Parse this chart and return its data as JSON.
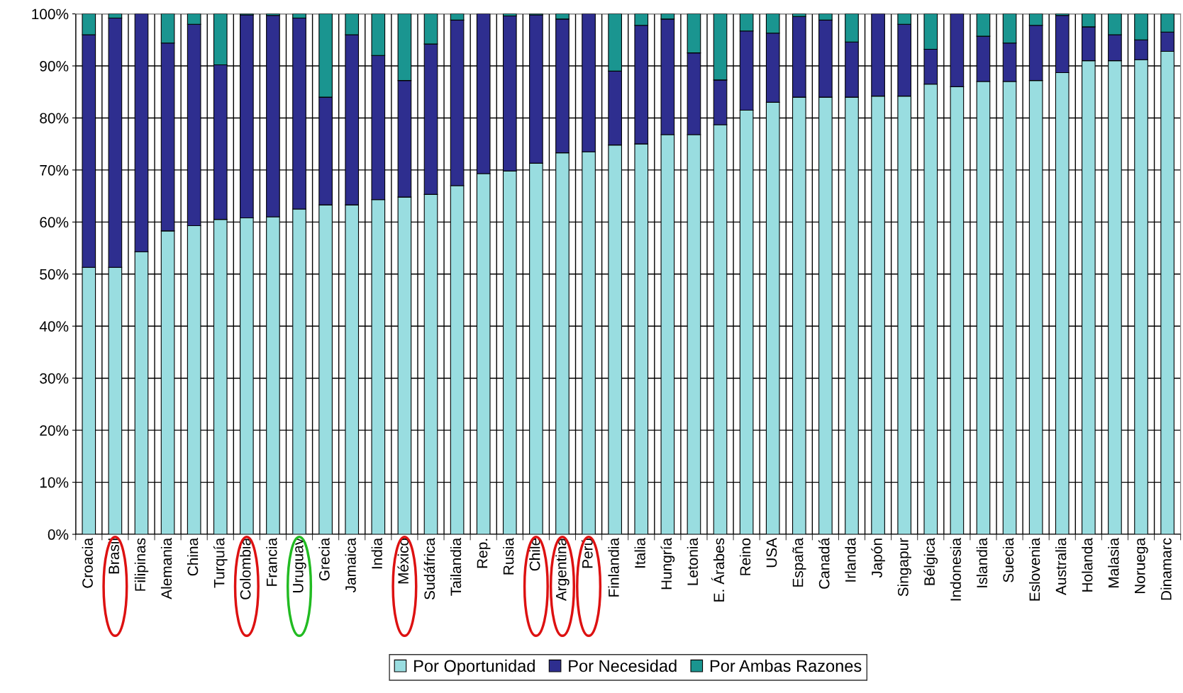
{
  "chart_data": {
    "type": "bar",
    "stacked": true,
    "categories": [
      "Croacia",
      "Brasil",
      "Filipinas",
      "Alemania",
      "China",
      "Turquía",
      "Colombia",
      "Francia",
      "Uruguay",
      "Grecia",
      "Jamaica",
      "India",
      "México",
      "Sudáfrica",
      "Tailandia",
      "Rep.",
      "Rusia",
      "Chile",
      "Argentina",
      "Perú",
      "Finlandia",
      "Italia",
      "Hungría",
      "Letonia",
      "E. Árabes",
      "Reino",
      "USA",
      "España",
      "Canadá",
      "Irlanda",
      "Japón",
      "Singapur",
      "Bélgica",
      "Indonesia",
      "Islandia",
      "Suecia",
      "Eslovenia",
      "Australia",
      "Holanda",
      "Malasia",
      "Noruega",
      "Dinamarc"
    ],
    "series": [
      {
        "name": "Por Oportunidad",
        "color": "#99dde0",
        "values": [
          51.3,
          51.3,
          54.3,
          58.3,
          59.3,
          60.5,
          60.8,
          61.0,
          62.5,
          63.3,
          63.3,
          64.3,
          64.8,
          65.3,
          67.0,
          69.3,
          69.8,
          71.3,
          73.3,
          73.5,
          74.8,
          75.0,
          76.8,
          76.8,
          78.7,
          81.5,
          83.0,
          84.0,
          84.0,
          84.0,
          84.2,
          84.2,
          86.5,
          86.0,
          87.0,
          87.0,
          87.2,
          88.7,
          91.0,
          91.0,
          91.2,
          92.8
        ]
      },
      {
        "name": "Por Necesidad",
        "color": "#2e2e8f",
        "values": [
          44.7,
          47.9,
          45.7,
          36.1,
          38.7,
          29.7,
          39.0,
          38.7,
          36.7,
          20.7,
          32.7,
          27.7,
          22.4,
          28.9,
          31.8,
          30.7,
          29.8,
          28.5,
          25.7,
          26.5,
          14.2,
          22.8,
          22.2,
          15.7,
          8.6,
          15.2,
          13.3,
          15.5,
          14.8,
          10.6,
          15.8,
          13.8,
          6.7,
          14.0,
          8.7,
          7.4,
          10.6,
          11.0,
          6.5,
          5.0,
          3.8,
          3.7
        ]
      },
      {
        "name": "Por Ambas Razones",
        "color": "#1a9590",
        "values": [
          4.0,
          0.8,
          0,
          5.6,
          2.0,
          9.8,
          0.2,
          0.3,
          0.8,
          16.0,
          4.0,
          8.0,
          12.8,
          5.8,
          1.2,
          0,
          0.4,
          0.2,
          1.0,
          0,
          11.0,
          2.2,
          1.0,
          7.5,
          12.7,
          3.3,
          3.7,
          0.5,
          1.2,
          5.4,
          0,
          2.0,
          6.8,
          0,
          4.3,
          5.6,
          2.2,
          0.3,
          2.5,
          4.0,
          5.0,
          3.5
        ]
      }
    ],
    "ylim": [
      0,
      100
    ],
    "yticks": [
      {
        "value": 0,
        "label": "0%"
      },
      {
        "value": 10,
        "label": "10%"
      },
      {
        "value": 20,
        "label": "20%"
      },
      {
        "value": 30,
        "label": "30%"
      },
      {
        "value": 40,
        "label": "40%"
      },
      {
        "value": 50,
        "label": "50%"
      },
      {
        "value": 60,
        "label": "60%"
      },
      {
        "value": 70,
        "label": "70%"
      },
      {
        "value": 80,
        "label": "80%"
      },
      {
        "value": 90,
        "label": "90%"
      },
      {
        "value": 100,
        "label": "100%"
      }
    ],
    "grid": true,
    "legend": "bottom"
  }
}
